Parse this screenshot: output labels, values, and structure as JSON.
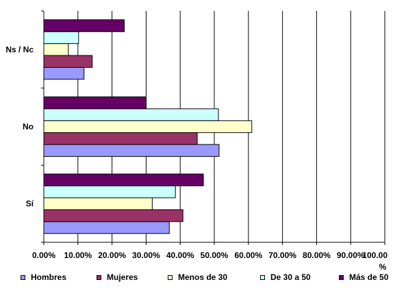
{
  "chart_data": {
    "type": "bar",
    "orientation": "horizontal",
    "categories": [
      "Sí",
      "No",
      "Ns / Nc"
    ],
    "series": [
      {
        "name": "Hombres",
        "color": "#9999ff",
        "values": [
          36.8,
          51.4,
          11.8
        ]
      },
      {
        "name": "Mujeres",
        "color": "#993366",
        "values": [
          40.8,
          45.0,
          14.2
        ]
      },
      {
        "name": "Menos de 30",
        "color": "#ffffcc",
        "values": [
          31.8,
          61.0,
          7.2
        ]
      },
      {
        "name": "De 30 a 50",
        "color": "#ccffff",
        "values": [
          38.6,
          51.2,
          10.2
        ]
      },
      {
        "name": "Más de 50",
        "color": "#660066",
        "values": [
          46.8,
          30.0,
          23.6
        ]
      }
    ],
    "xlim": [
      0,
      100
    ],
    "xticks": [
      0,
      10,
      20,
      30,
      40,
      50,
      60,
      70,
      80,
      90,
      100
    ],
    "xtick_labels": [
      "0.00%",
      "10.00%",
      "20.00%",
      "30.00%",
      "40.00%",
      "50.00%",
      "60.00%",
      "70.00%",
      "80.00%",
      "90.00%",
      "100.00"
    ],
    "xlabel": "%",
    "grid": "vertical",
    "legend_position": "bottom"
  }
}
